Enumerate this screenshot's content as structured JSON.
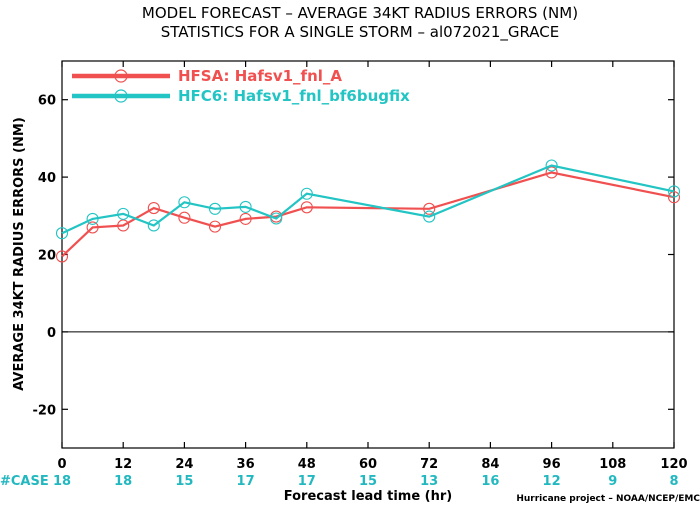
{
  "chart_data": {
    "type": "line",
    "title_lines": [
      "MODEL FORECAST – AVERAGE 34KT RADIUS ERRORS (NM)",
      "STATISTICS FOR A SINGLE STORM – al072021_GRACE"
    ],
    "xlabel": "Forecast lead time (hr)",
    "ylabel": "AVERAGE 34KT RADIUS ERRORS (NM)",
    "credit": "Hurricane project – NOAA/NCEP/EMC",
    "xlim": [
      0,
      120
    ],
    "ylim": [
      -30,
      70
    ],
    "xticks": [
      0,
      12,
      24,
      36,
      48,
      60,
      72,
      84,
      96,
      108,
      120
    ],
    "yticks": [
      -20,
      0,
      20,
      40,
      60
    ],
    "zero_line": true,
    "case_label": "#CASE",
    "case_counts": [
      "18",
      "18",
      "15",
      "17",
      "17",
      "15",
      "13",
      "16",
      "12",
      "9",
      "8"
    ],
    "legend_position": "top-left",
    "series": [
      {
        "name": "HFSA: Hafsv1_fnl_A",
        "color": "#f05050",
        "x": [
          0,
          6,
          12,
          18,
          24,
          30,
          36,
          42,
          48,
          72,
          96,
          120
        ],
        "y": [
          19.5,
          27.0,
          27.5,
          32.0,
          29.5,
          27.2,
          29.2,
          29.8,
          32.2,
          31.8,
          41.2,
          34.8
        ]
      },
      {
        "name": "HFC6: Hafsv1_fnl_bf6bugfix",
        "color": "#22c4c4",
        "x": [
          0,
          6,
          12,
          18,
          24,
          30,
          36,
          42,
          48,
          72,
          96,
          120
        ],
        "y": [
          25.5,
          29.2,
          30.5,
          27.5,
          33.5,
          31.8,
          32.3,
          29.3,
          35.7,
          29.8,
          43.0,
          36.3
        ]
      }
    ]
  }
}
